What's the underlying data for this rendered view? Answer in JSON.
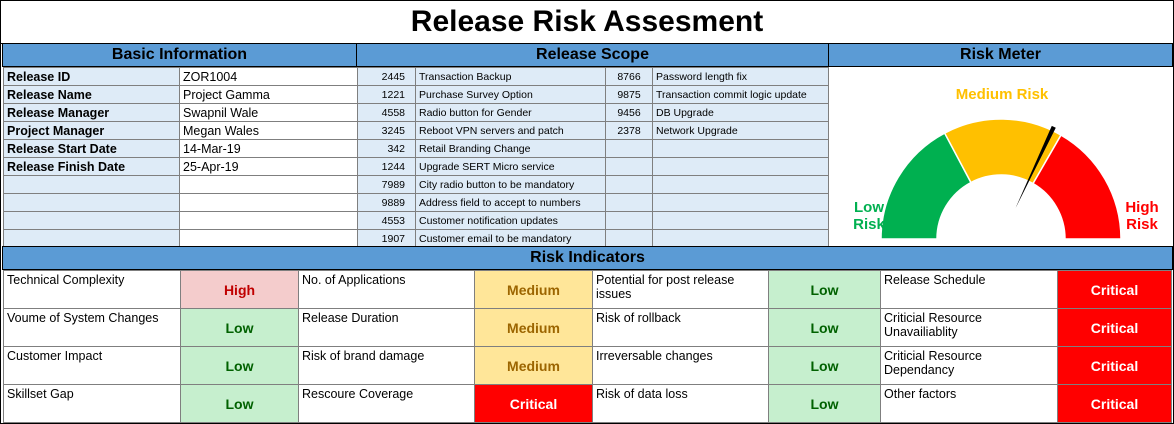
{
  "title": "Release Risk Assesment",
  "sections": {
    "basic": "Basic Information",
    "scope": "Release Scope",
    "meter": "Risk Meter",
    "indicators": "Risk Indicators"
  },
  "basic_info": [
    {
      "label": "Release ID",
      "value": "ZOR1004"
    },
    {
      "label": "Release Name",
      "value": "Project Gamma"
    },
    {
      "label": "Release Manager",
      "value": "Swapnil Wale"
    },
    {
      "label": "Project Manager",
      "value": "Megan Wales"
    },
    {
      "label": "Release Start Date",
      "value": "14-Mar-19"
    },
    {
      "label": "Release Finish Date",
      "value": "25-Apr-19"
    },
    {
      "label": "",
      "value": ""
    },
    {
      "label": "",
      "value": ""
    },
    {
      "label": "",
      "value": ""
    },
    {
      "label": "",
      "value": ""
    }
  ],
  "scope_rows": [
    {
      "id": "2445",
      "desc": "Transaction Backup",
      "id2": "8766",
      "desc2": "Password length fix"
    },
    {
      "id": "1221",
      "desc": "Purchase Survey Option",
      "id2": "9875",
      "desc2": "Transaction commit logic update"
    },
    {
      "id": "4558",
      "desc": "Radio button for Gender",
      "id2": "9456",
      "desc2": "DB Upgrade"
    },
    {
      "id": "3245",
      "desc": "Reboot VPN servers and patch",
      "id2": "2378",
      "desc2": "Network Upgrade"
    },
    {
      "id": "342",
      "desc": "Retail Branding Change",
      "id2": "",
      "desc2": ""
    },
    {
      "id": "1244",
      "desc": "Upgrade SERT Micro service",
      "id2": "",
      "desc2": ""
    },
    {
      "id": "7989",
      "desc": "City radio button to be mandatory",
      "id2": "",
      "desc2": ""
    },
    {
      "id": "9889",
      "desc": "Address field to accept to numbers",
      "id2": "",
      "desc2": ""
    },
    {
      "id": "4553",
      "desc": "Customer notification updates",
      "id2": "",
      "desc2": ""
    },
    {
      "id": "1907",
      "desc": "Customer email to be mandatory",
      "id2": "",
      "desc2": ""
    }
  ],
  "meter": {
    "low_label": "Low Risk",
    "low_lines": [
      "Low",
      "Risk"
    ],
    "medium_label": "Medium Risk",
    "high_lines": [
      "High",
      "Risk"
    ],
    "needle_value": 0.64,
    "colors": {
      "low": "#00b050",
      "medium": "#ffc000",
      "high": "#ff0000"
    }
  },
  "indicators": [
    [
      {
        "name": "Technical Complexity",
        "level": "High"
      },
      {
        "name": "No. of Applications",
        "level": "Medium"
      },
      {
        "name": "Potential for post release issues",
        "level": "Low"
      },
      {
        "name": "Release Schedule",
        "level": "Critical"
      }
    ],
    [
      {
        "name": "Voume of System Changes",
        "level": "Low"
      },
      {
        "name": "Release Duration",
        "level": "Medium"
      },
      {
        "name": "Risk of rollback",
        "level": "Low"
      },
      {
        "name": "Criticial Resource Unavailiablity",
        "level": "Critical"
      }
    ],
    [
      {
        "name": "Customer Impact",
        "level": "Low"
      },
      {
        "name": "Risk of brand damage",
        "level": "Medium"
      },
      {
        "name": "Irreversable changes",
        "level": "Low"
      },
      {
        "name": "Criticial Resource Dependancy",
        "level": "Critical"
      }
    ],
    [
      {
        "name": "Skillset Gap",
        "level": "Low"
      },
      {
        "name": "Rescoure Coverage",
        "level": "Critical"
      },
      {
        "name": "Risk of data loss",
        "level": "Low"
      },
      {
        "name": "Other factors",
        "level": "Critical"
      }
    ]
  ]
}
